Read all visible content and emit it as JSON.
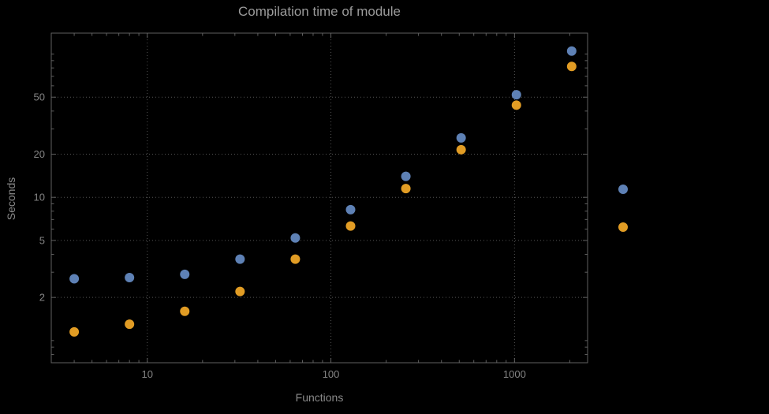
{
  "chart_data": {
    "type": "scatter",
    "title": "Compilation time of module",
    "xlabel": "Functions",
    "ylabel": "Seconds",
    "xscale": "log",
    "yscale": "log",
    "xlim": [
      3,
      2500
    ],
    "ylim": [
      0.7,
      140
    ],
    "grid": "dotted",
    "x_gridlines": [
      10,
      100,
      1000
    ],
    "y_gridlines": [
      2,
      5,
      10,
      20,
      50
    ],
    "x_tick_labels": [
      "10",
      "100",
      "1000"
    ],
    "y_tick_labels": [
      "2",
      "5",
      "10",
      "20",
      "50"
    ],
    "x": [
      4,
      8,
      16,
      32,
      64,
      128,
      256,
      512,
      1024,
      2048
    ],
    "series": [
      {
        "name": "series-blue",
        "color": "#5e81b5",
        "values": [
          2.7,
          2.75,
          2.9,
          3.7,
          5.2,
          8.2,
          14,
          26,
          52,
          105
        ]
      },
      {
        "name": "series-orange",
        "color": "#e19c24",
        "values": [
          1.15,
          1.3,
          1.6,
          2.2,
          3.7,
          6.3,
          11.5,
          21.5,
          44,
          82
        ]
      }
    ],
    "legend_position": "right",
    "legend_markers": [
      {
        "name": "legend-marker-blue",
        "color": "#5e81b5"
      },
      {
        "name": "legend-marker-orange",
        "color": "#e19c24"
      }
    ]
  },
  "colors": {
    "background": "#000000",
    "frame": "#606060",
    "grid": "#545454",
    "tick_label": "#848484",
    "axis_label": "#8a8a8a",
    "title": "#9b9b9b"
  }
}
